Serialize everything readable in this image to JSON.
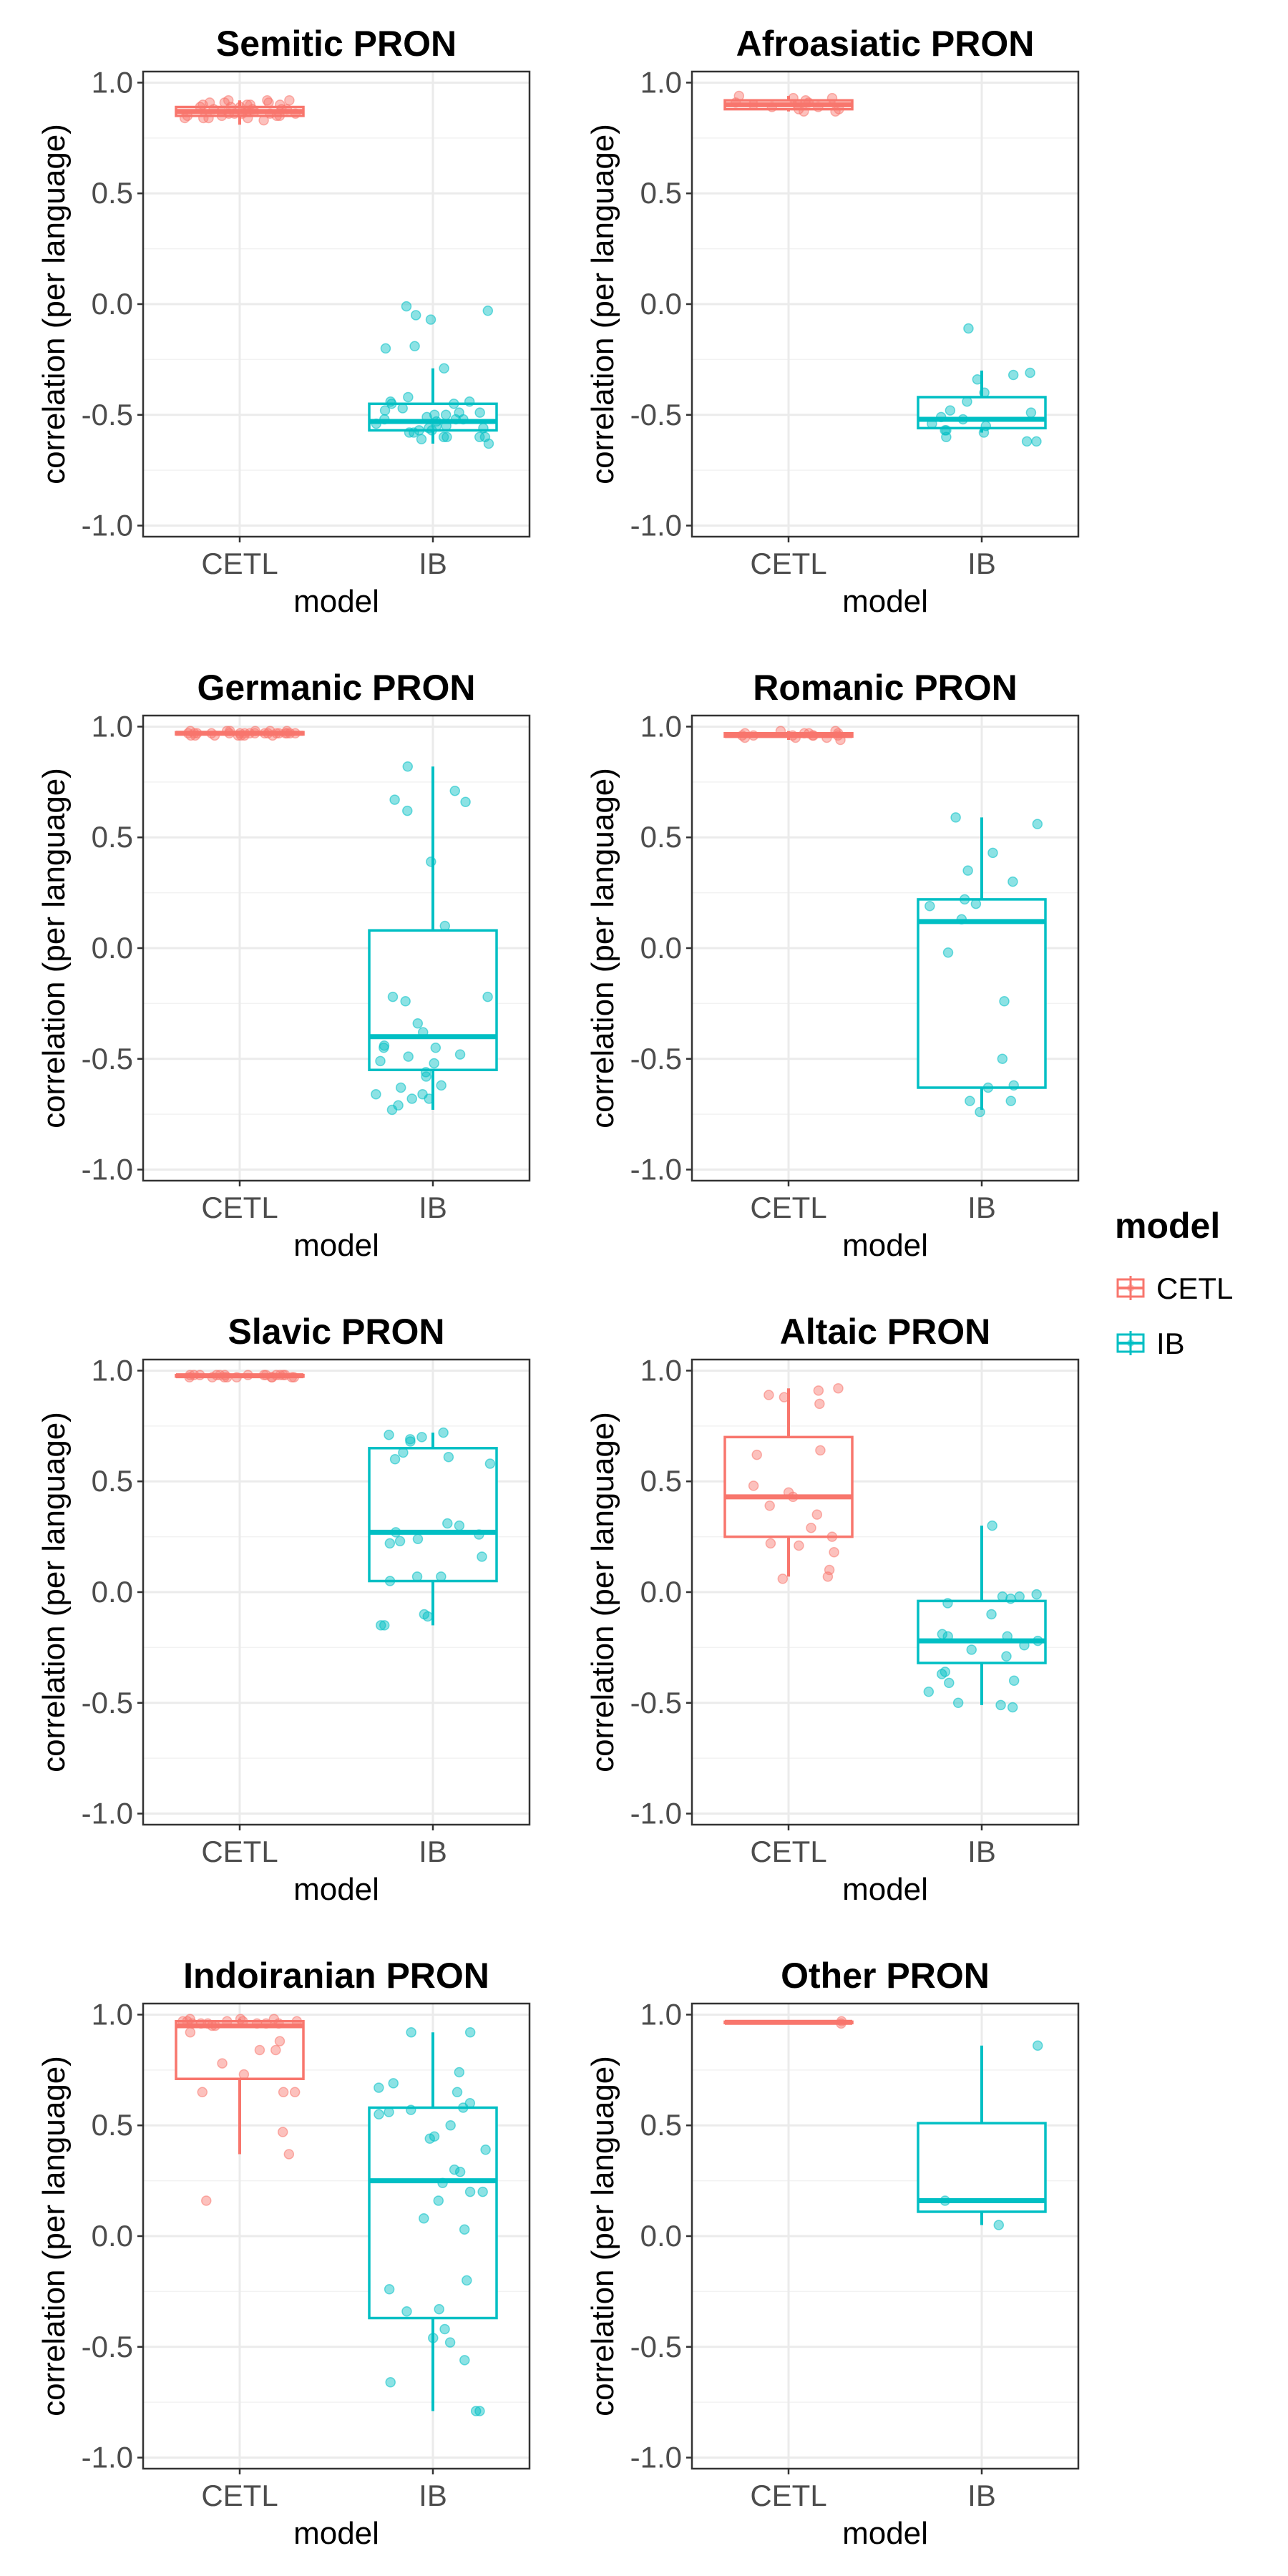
{
  "chart_data": {
    "type": "boxplot",
    "figure_legend": {
      "title": "model",
      "entries": [
        {
          "label": "CETL",
          "color": "#F8766D"
        },
        {
          "label": "IB",
          "color": "#00BFC4"
        }
      ]
    },
    "panels": [
      {
        "title": "Semitic PRON",
        "xlabel": "model",
        "ylabel": "correlation (per language)",
        "categories": [
          "CETL",
          "IB"
        ],
        "ylim": [
          -1.05,
          1.05
        ],
        "yticks": [
          -1.0,
          -0.5,
          0.0,
          0.5,
          1.0
        ],
        "ytick_labels": [
          "-1.0",
          "-0.5",
          "0.0",
          "0.5",
          "1.0"
        ],
        "boxes": [
          {
            "model": "CETL",
            "color": "#F8766D",
            "min": 0.81,
            "q1": 0.85,
            "median": 0.87,
            "q3": 0.89,
            "max": 0.92,
            "points": [
              0.84,
              0.92,
              0.9,
              0.86,
              0.88,
              0.85,
              0.91,
              0.89,
              0.87,
              0.86,
              0.84,
              0.9,
              0.88,
              0.92,
              0.85,
              0.87,
              0.89,
              0.91,
              0.86,
              0.83,
              0.88,
              0.9,
              0.85,
              0.87,
              0.92,
              0.84,
              0.86,
              0.89,
              0.88,
              0.9,
              0.85,
              0.87,
              0.91,
              0.86,
              0.84
            ]
          },
          {
            "model": "IB",
            "color": "#00BFC4",
            "min": -0.63,
            "q1": -0.57,
            "median": -0.53,
            "q3": -0.45,
            "max": -0.29,
            "points": [
              -0.6,
              -0.07,
              -0.05,
              -0.57,
              -0.52,
              -0.49,
              -0.58,
              -0.19,
              -0.55,
              -0.6,
              -0.5,
              -0.42,
              -0.56,
              -0.6,
              -0.45,
              -0.52,
              -0.48,
              -0.63,
              -0.55,
              -0.61,
              -0.29,
              -0.51,
              -0.56,
              -0.54,
              -0.49,
              -0.58,
              -0.47,
              -0.44,
              -0.03,
              -0.01,
              -0.2,
              -0.53,
              -0.57,
              -0.45,
              -0.52,
              -0.6,
              -0.5,
              -0.44
            ]
          }
        ]
      },
      {
        "title": "Afroasiatic PRON",
        "xlabel": "model",
        "ylabel": "correlation (per language)",
        "categories": [
          "CETL",
          "IB"
        ],
        "ylim": [
          -1.05,
          1.05
        ],
        "yticks": [
          -1.0,
          -0.5,
          0.0,
          0.5,
          1.0
        ],
        "ytick_labels": [
          "-1.0",
          "-0.5",
          "0.0",
          "0.5",
          "1.0"
        ],
        "boxes": [
          {
            "model": "CETL",
            "color": "#F8766D",
            "min": 0.87,
            "q1": 0.88,
            "median": 0.9,
            "q3": 0.92,
            "max": 0.94,
            "points": [
              0.88,
              0.91,
              0.89,
              0.93,
              0.9,
              0.87,
              0.92,
              0.89,
              0.94,
              0.91,
              0.88,
              0.9,
              0.93,
              0.87
            ]
          },
          {
            "model": "IB",
            "color": "#00BFC4",
            "min": -0.58,
            "q1": -0.56,
            "median": -0.52,
            "q3": -0.42,
            "max": -0.3,
            "points": [
              -0.11,
              -0.31,
              -0.34,
              -0.48,
              -0.57,
              -0.62,
              -0.52,
              -0.57,
              -0.4,
              -0.54,
              -0.58,
              -0.44,
              -0.51,
              -0.32,
              -0.6,
              -0.55,
              -0.62,
              -0.49
            ]
          }
        ]
      },
      {
        "title": "Germanic PRON",
        "xlabel": "model",
        "ylabel": "correlation (per language)",
        "categories": [
          "CETL",
          "IB"
        ],
        "ylim": [
          -1.05,
          1.05
        ],
        "yticks": [
          -1.0,
          -0.5,
          0.0,
          0.5,
          1.0
        ],
        "ytick_labels": [
          "-1.0",
          "-0.5",
          "0.0",
          "0.5",
          "1.0"
        ],
        "boxes": [
          {
            "model": "CETL",
            "color": "#F8766D",
            "min": 0.96,
            "q1": 0.965,
            "median": 0.97,
            "q3": 0.975,
            "max": 0.98,
            "points": [
              0.97,
              0.96,
              0.98,
              0.97,
              0.97,
              0.96,
              0.97,
              0.98,
              0.97,
              0.96,
              0.97,
              0.98,
              0.97,
              0.97,
              0.96,
              0.97,
              0.98,
              0.97,
              0.97,
              0.96,
              0.97,
              0.98,
              0.97,
              0.96,
              0.97,
              0.97,
              0.98,
              0.97,
              0.96,
              0.97
            ]
          },
          {
            "model": "IB",
            "color": "#00BFC4",
            "min": -0.73,
            "q1": -0.55,
            "median": -0.4,
            "q3": 0.08,
            "max": 0.82,
            "points": [
              -0.24,
              -0.45,
              -0.52,
              -0.63,
              -0.68,
              -0.38,
              -0.66,
              -0.34,
              -0.22,
              -0.62,
              -0.71,
              -0.58,
              0.71,
              -0.66,
              -0.22,
              -0.48,
              0.1,
              0.62,
              -0.45,
              -0.68,
              -0.56,
              -0.73,
              -0.44,
              -0.49,
              0.82,
              0.39,
              0.66,
              0.67,
              -0.51
            ]
          }
        ]
      },
      {
        "title": "Romanic PRON",
        "xlabel": "model",
        "ylabel": "correlation (per language)",
        "categories": [
          "CETL",
          "IB"
        ],
        "ylim": [
          -1.05,
          1.05
        ],
        "yticks": [
          -1.0,
          -0.5,
          0.0,
          0.5,
          1.0
        ],
        "ytick_labels": [
          "-1.0",
          "-0.5",
          "0.0",
          "0.5",
          "1.0"
        ],
        "boxes": [
          {
            "model": "CETL",
            "color": "#F8766D",
            "min": 0.94,
            "q1": 0.955,
            "median": 0.96,
            "q3": 0.97,
            "max": 0.98,
            "points": [
              0.95,
              0.97,
              0.96,
              0.96,
              0.98,
              0.95,
              0.97,
              0.96,
              0.94,
              0.96,
              0.97,
              0.95,
              0.96,
              0.97,
              0.96,
              0.98
            ]
          },
          {
            "model": "IB",
            "color": "#00BFC4",
            "min": -0.73,
            "q1": -0.63,
            "median": 0.12,
            "q3": 0.22,
            "max": 0.59,
            "points": [
              0.43,
              -0.5,
              -0.74,
              -0.69,
              0.3,
              0.35,
              0.22,
              -0.02,
              0.2,
              0.13,
              0.59,
              -0.24,
              -0.62,
              -0.63,
              0.19,
              -0.69,
              0.56
            ]
          }
        ]
      },
      {
        "title": "Slavic PRON",
        "xlabel": "model",
        "ylabel": "correlation (per language)",
        "categories": [
          "CETL",
          "IB"
        ],
        "ylim": [
          -1.05,
          1.05
        ],
        "yticks": [
          -1.0,
          -0.5,
          0.0,
          0.5,
          1.0
        ],
        "ytick_labels": [
          "-1.0",
          "-0.5",
          "0.0",
          "0.5",
          "1.0"
        ],
        "boxes": [
          {
            "model": "CETL",
            "color": "#F8766D",
            "min": 0.97,
            "q1": 0.973,
            "median": 0.977,
            "q3": 0.98,
            "max": 0.985,
            "points": [
              0.98,
              0.97,
              0.98,
              0.98,
              0.97,
              0.98,
              0.97,
              0.98,
              0.98,
              0.97,
              0.98,
              0.97,
              0.98,
              0.98,
              0.97,
              0.98,
              0.97,
              0.98,
              0.98,
              0.97,
              0.98,
              0.97
            ]
          },
          {
            "model": "IB",
            "color": "#00BFC4",
            "min": -0.15,
            "q1": 0.05,
            "median": 0.27,
            "q3": 0.65,
            "max": 0.72,
            "points": [
              0.31,
              0.23,
              0.27,
              0.72,
              -0.11,
              0.6,
              0.7,
              0.68,
              0.24,
              0.63,
              0.07,
              -0.15,
              0.61,
              0.05,
              0.22,
              0.71,
              0.3,
              0.58,
              0.16,
              0.69,
              -0.15,
              0.07,
              0.26,
              -0.1
            ]
          }
        ]
      },
      {
        "title": "Altaic PRON",
        "xlabel": "model",
        "ylabel": "correlation (per language)",
        "categories": [
          "CETL",
          "IB"
        ],
        "ylim": [
          -1.05,
          1.05
        ],
        "yticks": [
          -1.0,
          -0.5,
          0.0,
          0.5,
          1.0
        ],
        "ytick_labels": [
          "-1.0",
          "-0.5",
          "0.0",
          "0.5",
          "1.0"
        ],
        "boxes": [
          {
            "model": "CETL",
            "color": "#F8766D",
            "min": 0.07,
            "q1": 0.25,
            "median": 0.43,
            "q3": 0.7,
            "max": 0.92,
            "points": [
              0.89,
              0.07,
              0.48,
              0.39,
              0.92,
              0.62,
              0.29,
              0.21,
              0.45,
              0.18,
              0.1,
              0.43,
              0.35,
              0.22,
              0.85,
              0.06,
              0.25,
              0.88,
              0.64,
              0.91
            ]
          },
          {
            "model": "IB",
            "color": "#00BFC4",
            "min": -0.51,
            "q1": -0.32,
            "median": -0.22,
            "q3": -0.04,
            "max": 0.3,
            "points": [
              0.3,
              -0.2,
              -0.41,
              -0.05,
              -0.02,
              -0.26,
              -0.2,
              -0.5,
              -0.01,
              -0.52,
              -0.24,
              -0.1,
              -0.29,
              -0.03,
              -0.36,
              -0.02,
              -0.19,
              -0.22,
              -0.45,
              -0.37,
              -0.51,
              -0.4
            ]
          }
        ]
      },
      {
        "title": "Indoiranian PRON",
        "xlabel": "model",
        "ylabel": "correlation (per language)",
        "categories": [
          "CETL",
          "IB"
        ],
        "ylim": [
          -1.05,
          1.05
        ],
        "yticks": [
          -1.0,
          -0.5,
          0.0,
          0.5,
          1.0
        ],
        "ytick_labels": [
          "-1.0",
          "-0.5",
          "0.0",
          "0.5",
          "1.0"
        ],
        "boxes": [
          {
            "model": "CETL",
            "color": "#F8766D",
            "min": 0.37,
            "q1": 0.71,
            "median": 0.95,
            "q3": 0.97,
            "max": 0.98,
            "points": [
              0.65,
              0.84,
              0.96,
              0.95,
              0.65,
              0.98,
              0.37,
              0.92,
              0.65,
              0.96,
              0.78,
              0.97,
              0.84,
              0.96,
              0.97,
              0.16,
              0.97,
              0.73,
              0.88,
              0.96,
              0.97,
              0.95,
              0.98,
              0.96,
              0.47,
              0.97,
              0.96,
              0.98
            ]
          },
          {
            "model": "IB",
            "color": "#00BFC4",
            "min": -0.79,
            "q1": -0.37,
            "median": 0.25,
            "q3": 0.58,
            "max": 0.92,
            "points": [
              0.92,
              0.44,
              0.67,
              0.74,
              -0.79,
              0.65,
              0.24,
              0.45,
              0.58,
              0.3,
              0.69,
              0.2,
              -0.46,
              0.92,
              -0.66,
              0.29,
              0.6,
              -0.34,
              -0.33,
              0.08,
              0.2,
              0.03,
              0.56,
              0.39,
              -0.24,
              -0.42,
              -0.56,
              0.16,
              0.57,
              -0.48,
              -0.79,
              -0.2,
              0.5,
              0.55
            ]
          }
        ]
      },
      {
        "title": "Other PRON",
        "xlabel": "model",
        "ylabel": "correlation (per language)",
        "categories": [
          "CETL",
          "IB"
        ],
        "ylim": [
          -1.05,
          1.05
        ],
        "yticks": [
          -1.0,
          -0.5,
          0.0,
          0.5,
          1.0
        ],
        "ytick_labels": [
          "-1.0",
          "-0.5",
          "0.0",
          "0.5",
          "1.0"
        ],
        "boxes": [
          {
            "model": "CETL",
            "color": "#F8766D",
            "min": 0.96,
            "q1": 0.962,
            "median": 0.965,
            "q3": 0.968,
            "max": 0.97,
            "points": [
              0.96,
              0.97
            ]
          },
          {
            "model": "IB",
            "color": "#00BFC4",
            "min": 0.05,
            "q1": 0.11,
            "median": 0.16,
            "q3": 0.51,
            "max": 0.86,
            "points": [
              0.86,
              0.16,
              0.05
            ]
          }
        ]
      }
    ]
  }
}
